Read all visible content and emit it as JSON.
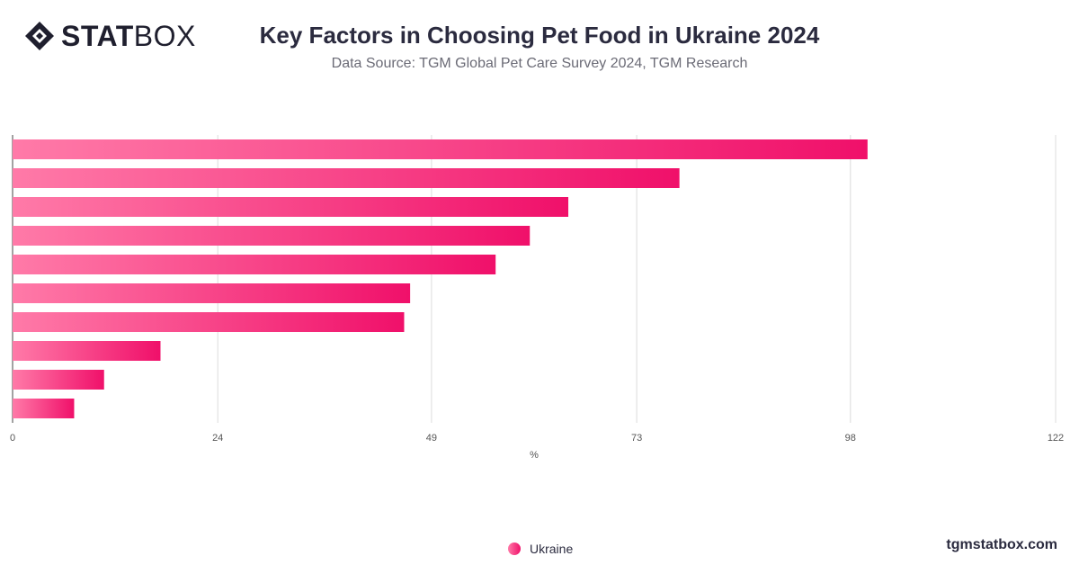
{
  "brand": {
    "logo_bold": "STAT",
    "logo_light": "BOX",
    "website": "tgmstatbox.com"
  },
  "header": {
    "title": "Key Factors in Choosing Pet Food in Ukraine 2024",
    "subtitle": "Data Source: TGM Global Pet Care Survey 2024, TGM Research"
  },
  "colors": {
    "bar_start": "#ff7aa8",
    "bar_end": "#f0106a",
    "grid": "#dcdcdc",
    "text": "#2b2b3f"
  },
  "chart_data": {
    "type": "bar",
    "orientation": "horizontal",
    "title": "Key Factors in Choosing Pet Food in Ukraine 2024",
    "xlabel": "%",
    "ylabel": "",
    "x_ticks": [
      "0",
      "24",
      "49",
      "73",
      "98",
      "122"
    ],
    "xlim": [
      0,
      122
    ],
    "grid": true,
    "legend_position": "bottom",
    "series": [
      {
        "name": "Ukraine",
        "values": [
          100,
          78,
          65,
          60.5,
          56.5,
          46.5,
          45.8,
          17.3,
          10.7,
          7.2
        ]
      }
    ]
  },
  "legend": {
    "items": [
      {
        "label": "Ukraine"
      }
    ]
  }
}
